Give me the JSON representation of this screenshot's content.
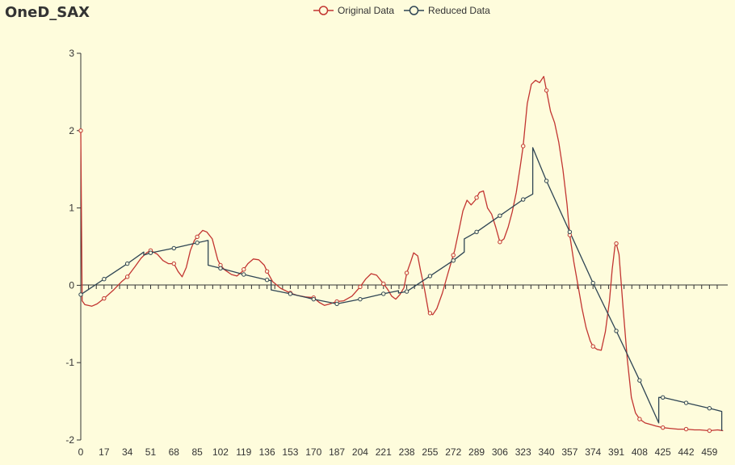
{
  "chart_data": {
    "type": "line",
    "title": "OneD_SAX",
    "xlabel": "",
    "ylabel": "",
    "xlim": [
      0,
      470
    ],
    "ylim": [
      -2,
      3
    ],
    "x_ticks": [
      0,
      17,
      34,
      51,
      68,
      85,
      102,
      119,
      136,
      153,
      170,
      187,
      204,
      221,
      238,
      255,
      272,
      289,
      306,
      323,
      340,
      357,
      374,
      391,
      408,
      425,
      442,
      459
    ],
    "y_ticks": [
      -2,
      -1,
      0,
      1,
      2,
      3
    ],
    "legend_position": "top-center",
    "series": [
      {
        "name": "Original Data",
        "color": "#c23531",
        "points": [
          [
            0,
            2.0
          ],
          [
            1,
            -0.2
          ],
          [
            3,
            -0.25
          ],
          [
            8,
            -0.27
          ],
          [
            12,
            -0.24
          ],
          [
            17,
            -0.17
          ],
          [
            24,
            -0.06
          ],
          [
            30,
            0.05
          ],
          [
            34,
            0.11
          ],
          [
            40,
            0.25
          ],
          [
            44,
            0.35
          ],
          [
            48,
            0.42
          ],
          [
            51,
            0.45
          ],
          [
            56,
            0.4
          ],
          [
            60,
            0.32
          ],
          [
            64,
            0.28
          ],
          [
            68,
            0.28
          ],
          [
            71,
            0.18
          ],
          [
            74,
            0.11
          ],
          [
            77,
            0.23
          ],
          [
            80,
            0.45
          ],
          [
            83,
            0.58
          ],
          [
            86,
            0.65
          ],
          [
            89,
            0.71
          ],
          [
            92,
            0.69
          ],
          [
            96,
            0.6
          ],
          [
            100,
            0.33
          ],
          [
            102,
            0.26
          ],
          [
            105,
            0.2
          ],
          [
            110,
            0.14
          ],
          [
            114,
            0.12
          ],
          [
            118,
            0.18
          ],
          [
            122,
            0.28
          ],
          [
            126,
            0.34
          ],
          [
            130,
            0.33
          ],
          [
            134,
            0.26
          ],
          [
            136,
            0.18
          ],
          [
            140,
            0.05
          ],
          [
            146,
            -0.04
          ],
          [
            153,
            -0.1
          ],
          [
            158,
            -0.13
          ],
          [
            164,
            -0.15
          ],
          [
            170,
            -0.16
          ],
          [
            174,
            -0.22
          ],
          [
            178,
            -0.26
          ],
          [
            182,
            -0.24
          ],
          [
            187,
            -0.21
          ],
          [
            192,
            -0.2
          ],
          [
            198,
            -0.14
          ],
          [
            204,
            -0.02
          ],
          [
            208,
            0.08
          ],
          [
            212,
            0.15
          ],
          [
            216,
            0.13
          ],
          [
            221,
            0.02
          ],
          [
            224,
            -0.05
          ],
          [
            227,
            -0.14
          ],
          [
            230,
            -0.18
          ],
          [
            233,
            -0.12
          ],
          [
            236,
            -0.03
          ],
          [
            238,
            0.16
          ],
          [
            241,
            0.31
          ],
          [
            243,
            0.42
          ],
          [
            246,
            0.38
          ],
          [
            248,
            0.2
          ],
          [
            251,
            -0.05
          ],
          [
            254,
            -0.35
          ],
          [
            257,
            -0.38
          ],
          [
            260,
            -0.3
          ],
          [
            264,
            -0.1
          ],
          [
            268,
            0.15
          ],
          [
            271,
            0.33
          ],
          [
            273,
            0.45
          ],
          [
            276,
            0.7
          ],
          [
            279,
            0.96
          ],
          [
            282,
            1.1
          ],
          [
            285,
            1.04
          ],
          [
            288,
            1.1
          ],
          [
            291,
            1.2
          ],
          [
            294,
            1.22
          ],
          [
            297,
            1.0
          ],
          [
            300,
            0.92
          ],
          [
            303,
            0.75
          ],
          [
            306,
            0.56
          ],
          [
            309,
            0.6
          ],
          [
            312,
            0.75
          ],
          [
            315,
            0.95
          ],
          [
            318,
            1.2
          ],
          [
            321,
            1.55
          ],
          [
            323,
            1.8
          ],
          [
            326,
            2.35
          ],
          [
            329,
            2.6
          ],
          [
            332,
            2.65
          ],
          [
            335,
            2.62
          ],
          [
            338,
            2.7
          ],
          [
            340,
            2.52
          ],
          [
            343,
            2.25
          ],
          [
            346,
            2.1
          ],
          [
            349,
            1.85
          ],
          [
            352,
            1.5
          ],
          [
            355,
            1.05
          ],
          [
            357,
            0.65
          ],
          [
            360,
            0.3
          ],
          [
            363,
            0.0
          ],
          [
            366,
            -0.3
          ],
          [
            369,
            -0.55
          ],
          [
            372,
            -0.72
          ],
          [
            374,
            -0.79
          ],
          [
            377,
            -0.83
          ],
          [
            380,
            -0.84
          ],
          [
            383,
            -0.6
          ],
          [
            386,
            -0.2
          ],
          [
            388,
            0.2
          ],
          [
            390,
            0.5
          ],
          [
            391,
            0.54
          ],
          [
            393,
            0.4
          ],
          [
            396,
            -0.3
          ],
          [
            399,
            -0.95
          ],
          [
            402,
            -1.45
          ],
          [
            405,
            -1.65
          ],
          [
            408,
            -1.73
          ],
          [
            412,
            -1.78
          ],
          [
            416,
            -1.8
          ],
          [
            420,
            -1.82
          ],
          [
            425,
            -1.84
          ],
          [
            430,
            -1.85
          ],
          [
            436,
            -1.86
          ],
          [
            442,
            -1.86
          ],
          [
            448,
            -1.87
          ],
          [
            452,
            -1.87
          ],
          [
            459,
            -1.88
          ],
          [
            465,
            -1.87
          ],
          [
            469,
            -1.88
          ]
        ]
      },
      {
        "name": "Reduced Data",
        "color": "#2f4554",
        "points": [
          [
            0,
            -0.12
          ],
          [
            17,
            0.08
          ],
          [
            34,
            0.28
          ],
          [
            46,
            0.43
          ],
          [
            46.01,
            0.39
          ],
          [
            51,
            0.42
          ],
          [
            68,
            0.48
          ],
          [
            85,
            0.55
          ],
          [
            93,
            0.58
          ],
          [
            93.01,
            0.26
          ],
          [
            102,
            0.22
          ],
          [
            119,
            0.14
          ],
          [
            136,
            0.07
          ],
          [
            139,
            0.06
          ],
          [
            139.01,
            -0.06
          ],
          [
            153,
            -0.11
          ],
          [
            170,
            -0.18
          ],
          [
            187,
            -0.24
          ],
          [
            204,
            -0.18
          ],
          [
            221,
            -0.11
          ],
          [
            232,
            -0.07
          ],
          [
            232.01,
            -0.1
          ],
          [
            238,
            -0.08
          ],
          [
            255,
            0.12
          ],
          [
            272,
            0.32
          ],
          [
            280,
            0.43
          ],
          [
            280.01,
            0.6
          ],
          [
            289,
            0.69
          ],
          [
            306,
            0.9
          ],
          [
            323,
            1.11
          ],
          [
            330,
            1.18
          ],
          [
            330.01,
            1.78
          ],
          [
            340,
            1.35
          ],
          [
            357,
            0.69
          ],
          [
            374,
            0.03
          ],
          [
            391,
            -0.59
          ],
          [
            408,
            -1.23
          ],
          [
            422,
            -1.78
          ],
          [
            422.01,
            -1.45
          ],
          [
            425,
            -1.45
          ],
          [
            442,
            -1.52
          ],
          [
            459,
            -1.59
          ],
          [
            468,
            -1.63
          ],
          [
            468.01,
            -1.88
          ]
        ]
      }
    ],
    "markers": {
      "Original Data": [
        0,
        17,
        34,
        51,
        68,
        85,
        102,
        119,
        136,
        153,
        170,
        187,
        204,
        221,
        238,
        255,
        272,
        289,
        306,
        323,
        340,
        357,
        374,
        391,
        408,
        425,
        442,
        459
      ],
      "Reduced Data": [
        0,
        17,
        34,
        51,
        68,
        85,
        102,
        119,
        136,
        153,
        170,
        187,
        204,
        221,
        238,
        255,
        272,
        289,
        306,
        323,
        340,
        357,
        374,
        391,
        408,
        425,
        442,
        459
      ]
    }
  }
}
